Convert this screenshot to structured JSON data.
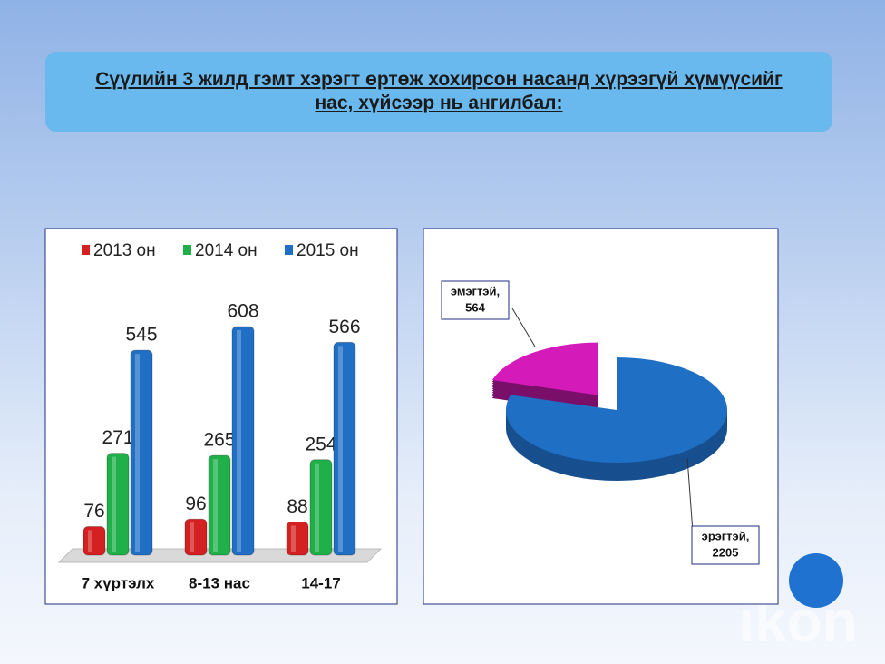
{
  "title": "Сүүлийн 3 жилд гэмт хэрэгт өртөж хохирсон насанд хүрээгүй хүмүүсийг нас, хүйсээр нь ангилбал:",
  "watermark": "ikon",
  "chart_data": [
    {
      "type": "bar",
      "categories": [
        "7 хүртэлх",
        "8-13 нас",
        "14-17"
      ],
      "series": [
        {
          "name": "2013 он",
          "color": "#d42020",
          "values": [
            76,
            96,
            88
          ]
        },
        {
          "name": "2014 он",
          "color": "#1fb04a",
          "values": [
            271,
            265,
            254
          ]
        },
        {
          "name": "2015 он",
          "color": "#1f6fc4",
          "values": [
            545,
            608,
            566
          ]
        }
      ],
      "legend": "top"
    },
    {
      "type": "pie",
      "categories": [
        "эмэгтэй,",
        "эрэгтэй,"
      ],
      "values": [
        564,
        2205
      ],
      "colors": [
        "#d41ab8",
        "#1f6fc4"
      ]
    }
  ]
}
